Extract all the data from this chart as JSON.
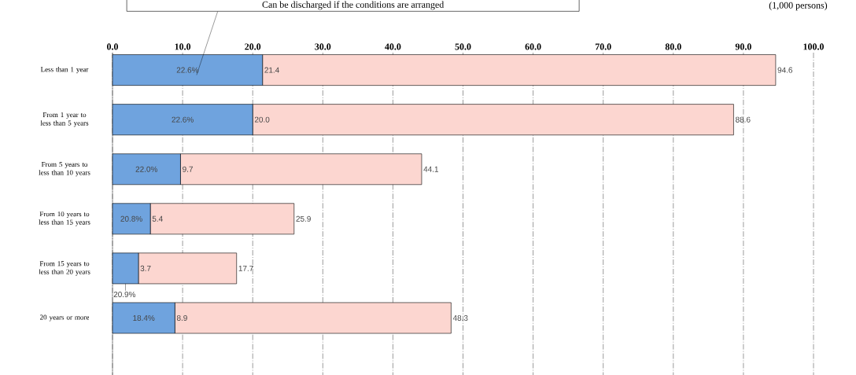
{
  "chart_data": {
    "type": "bar",
    "orientation": "horizontal",
    "stacked": true,
    "categories": [
      "Less than 1 year",
      "From 1 year to less than 5 years",
      "From 5 years to less than 10 years",
      "From 10 years to less than 15 years",
      "From 15 years to less than 20 years",
      "20 years or more"
    ],
    "series": [
      {
        "name": "Can be discharged if the conditions are arranged",
        "color": "#6fa3de",
        "values": [
          21.4,
          20.0,
          9.7,
          5.4,
          3.7,
          8.9
        ],
        "value_labels": [
          "21.4",
          "20.0",
          "9.7",
          "5.4",
          "3.7",
          "8.9"
        ]
      },
      {
        "color": "#fcd6d0",
        "values": [
          73.2,
          68.6,
          34.4,
          20.5,
          14.0,
          39.4
        ]
      }
    ],
    "totals": [
      "94.6",
      "88.6",
      "44.1",
      "25.9",
      "17.7",
      "48.3"
    ],
    "annotations": [
      "22.6%",
      "22.6%",
      "22.0%",
      "20.8%",
      "20.9%",
      "18.4%"
    ],
    "xlabel": "(1,000 persons)",
    "xlim": [
      0,
      100
    ],
    "xticks": [
      {
        "value": 0,
        "label": "0.0"
      },
      {
        "value": 10,
        "label": "10.0"
      },
      {
        "value": 20,
        "label": "20.0"
      },
      {
        "value": 30,
        "label": "30.0"
      },
      {
        "value": 40,
        "label": "40.0"
      },
      {
        "value": 50,
        "label": "50.0"
      },
      {
        "value": 60,
        "label": "60.0"
      },
      {
        "value": 70,
        "label": "70.0"
      },
      {
        "value": 80,
        "label": "80.0"
      },
      {
        "value": 90,
        "label": "90.0"
      },
      {
        "value": 100,
        "label": "100.0"
      }
    ],
    "grid": "x"
  }
}
